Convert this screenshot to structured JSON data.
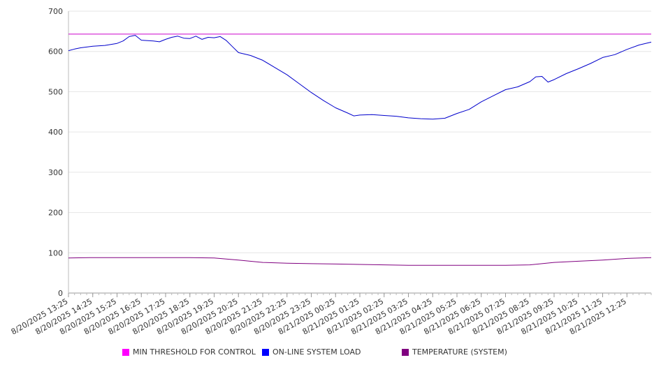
{
  "chart_data": {
    "type": "line",
    "title": "",
    "xlabel": "",
    "ylabel": "",
    "ylim": [
      0,
      700
    ],
    "yticks": [
      0,
      100,
      200,
      300,
      400,
      500,
      600,
      700
    ],
    "grid": true,
    "legend_position": "bottom",
    "x_tick_labels": [
      "8/20/2025 13:25",
      "8/20/2025 14:25",
      "8/20/2025 15:25",
      "8/20/2025 16:25",
      "8/20/2025 17:25",
      "8/20/2025 18:25",
      "8/20/2025 19:25",
      "8/20/2025 20:25",
      "8/20/2025 21:25",
      "8/20/2025 22:25",
      "8/20/2025 23:25",
      "8/21/2025 00:25",
      "8/21/2025 01:25",
      "8/21/2025 02:25",
      "8/21/2025 03:25",
      "8/21/2025 04:25",
      "8/21/2025 05:25",
      "8/21/2025 06:25",
      "8/21/2025 07:25",
      "8/21/2025 08:25",
      "8/21/2025 09:25",
      "8/21/2025 10:25",
      "8/21/2025 11:25",
      "8/21/2025 12:25"
    ],
    "series": [
      {
        "name": "MIN THRESHOLD FOR CONTROL",
        "color": "#cc00cc",
        "x": [
          "8/20/2025 13:25",
          "8/21/2025 13:25"
        ],
        "y": [
          643,
          643
        ]
      },
      {
        "name": "ON-LINE SYSTEM LOAD",
        "color": "#0000cc",
        "x": [
          "8/20/2025 13:25",
          "8/20/2025 13:40",
          "8/20/2025 13:55",
          "8/20/2025 14:25",
          "8/20/2025 14:55",
          "8/20/2025 15:25",
          "8/20/2025 15:40",
          "8/20/2025 15:55",
          "8/20/2025 16:10",
          "8/20/2025 16:25",
          "8/20/2025 16:55",
          "8/20/2025 17:10",
          "8/20/2025 17:25",
          "8/20/2025 17:40",
          "8/20/2025 17:55",
          "8/20/2025 18:10",
          "8/20/2025 18:25",
          "8/20/2025 18:40",
          "8/20/2025 18:55",
          "8/20/2025 19:10",
          "8/20/2025 19:25",
          "8/20/2025 19:40",
          "8/20/2025 19:55",
          "8/20/2025 20:10",
          "8/20/2025 20:25",
          "8/20/2025 20:55",
          "8/20/2025 21:25",
          "8/20/2025 21:55",
          "8/20/2025 22:25",
          "8/20/2025 22:55",
          "8/20/2025 23:25",
          "8/20/2025 23:55",
          "8/21/2025 00:25",
          "8/21/2025 00:55",
          "8/21/2025 01:10",
          "8/21/2025 01:25",
          "8/21/2025 01:55",
          "8/21/2025 02:25",
          "8/21/2025 02:55",
          "8/21/2025 03:25",
          "8/21/2025 03:55",
          "8/21/2025 04:25",
          "8/21/2025 04:55",
          "8/21/2025 05:25",
          "8/21/2025 05:55",
          "8/21/2025 06:25",
          "8/21/2025 06:55",
          "8/21/2025 07:25",
          "8/21/2025 07:55",
          "8/21/2025 08:25",
          "8/21/2025 08:40",
          "8/21/2025 08:55",
          "8/21/2025 09:10",
          "8/21/2025 09:25",
          "8/21/2025 09:55",
          "8/21/2025 10:25",
          "8/21/2025 10:55",
          "8/21/2025 11:25",
          "8/21/2025 11:55",
          "8/21/2025 12:25",
          "8/21/2025 12:55",
          "8/21/2025 13:25"
        ],
        "y": [
          602,
          606,
          609,
          613,
          615,
          620,
          626,
          637,
          640,
          628,
          626,
          624,
          630,
          635,
          638,
          633,
          632,
          638,
          630,
          635,
          634,
          637,
          627,
          612,
          597,
          590,
          578,
          560,
          542,
          520,
          498,
          478,
          460,
          447,
          440,
          442,
          443,
          441,
          439,
          435,
          433,
          432,
          434,
          446,
          456,
          475,
          490,
          505,
          512,
          525,
          537,
          538,
          524,
          530,
          545,
          557,
          570,
          585,
          592,
          605,
          616,
          623
        ]
      },
      {
        "name": "TEMPERATURE (SYSTEM)",
        "color": "#800080",
        "x": [
          "8/20/2025 13:25",
          "8/20/2025 14:25",
          "8/20/2025 16:25",
          "8/20/2025 18:25",
          "8/20/2025 19:25",
          "8/20/2025 20:25",
          "8/20/2025 21:25",
          "8/20/2025 22:25",
          "8/20/2025 23:25",
          "8/21/2025 00:25",
          "8/21/2025 01:25",
          "8/21/2025 02:25",
          "8/21/2025 03:25",
          "8/21/2025 04:25",
          "8/21/2025 05:25",
          "8/21/2025 06:25",
          "8/21/2025 07:25",
          "8/21/2025 08:25",
          "8/21/2025 09:25",
          "8/21/2025 10:25",
          "8/21/2025 11:25",
          "8/21/2025 12:25",
          "8/21/2025 13:25"
        ],
        "y": [
          87,
          88,
          88,
          88,
          87,
          82,
          76,
          74,
          73,
          72,
          71,
          70,
          69,
          69,
          69,
          69,
          69,
          70,
          76,
          79,
          82,
          86,
          88
        ]
      }
    ]
  }
}
